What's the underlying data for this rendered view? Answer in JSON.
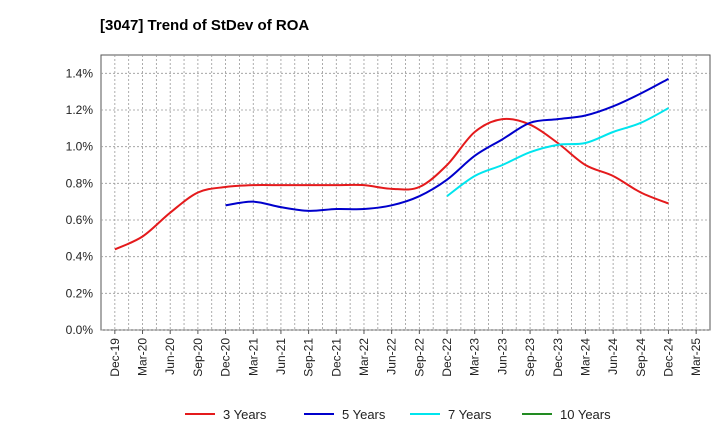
{
  "chart_data": {
    "type": "line",
    "title": "[3047]  Trend of StDev of ROA",
    "xlabel": "",
    "ylabel": "",
    "categories": [
      "Dec-19",
      "Mar-20",
      "Jun-20",
      "Sep-20",
      "Dec-20",
      "Mar-21",
      "Jun-21",
      "Sep-21",
      "Dec-21",
      "Mar-22",
      "Jun-22",
      "Sep-22",
      "Dec-22",
      "Mar-23",
      "Jun-23",
      "Sep-23",
      "Dec-23",
      "Mar-24",
      "Jun-24",
      "Sep-24",
      "Dec-24",
      "Mar-25"
    ],
    "y_ticks": [
      "0.0%",
      "0.2%",
      "0.4%",
      "0.6%",
      "0.8%",
      "1.0%",
      "1.2%",
      "1.4%"
    ],
    "ylim": [
      0,
      1.5
    ],
    "grid": true,
    "legend_position": "bottom",
    "series": [
      {
        "name": "3 Years",
        "color": "#e41a1c",
        "values": [
          0.44,
          0.51,
          0.64,
          0.75,
          0.78,
          0.79,
          0.79,
          0.79,
          0.79,
          0.79,
          0.77,
          0.78,
          0.9,
          1.08,
          1.15,
          1.12,
          1.02,
          0.9,
          0.84,
          0.75,
          0.69,
          null
        ]
      },
      {
        "name": "5 Years",
        "color": "#0000cc",
        "values": [
          null,
          null,
          null,
          null,
          0.68,
          0.7,
          0.67,
          0.65,
          0.66,
          0.66,
          0.68,
          0.73,
          0.82,
          0.95,
          1.04,
          1.13,
          1.15,
          1.17,
          1.22,
          1.29,
          1.37,
          null
        ]
      },
      {
        "name": "7 Years",
        "color": "#00e5ee",
        "values": [
          null,
          null,
          null,
          null,
          null,
          null,
          null,
          null,
          null,
          null,
          null,
          null,
          0.73,
          0.84,
          0.9,
          0.97,
          1.01,
          1.02,
          1.08,
          1.13,
          1.21,
          null
        ]
      },
      {
        "name": "10 Years",
        "color": "#228b22",
        "values": [
          null,
          null,
          null,
          null,
          null,
          null,
          null,
          null,
          null,
          null,
          null,
          null,
          null,
          null,
          null,
          null,
          null,
          null,
          null,
          null,
          null,
          null
        ]
      }
    ]
  }
}
